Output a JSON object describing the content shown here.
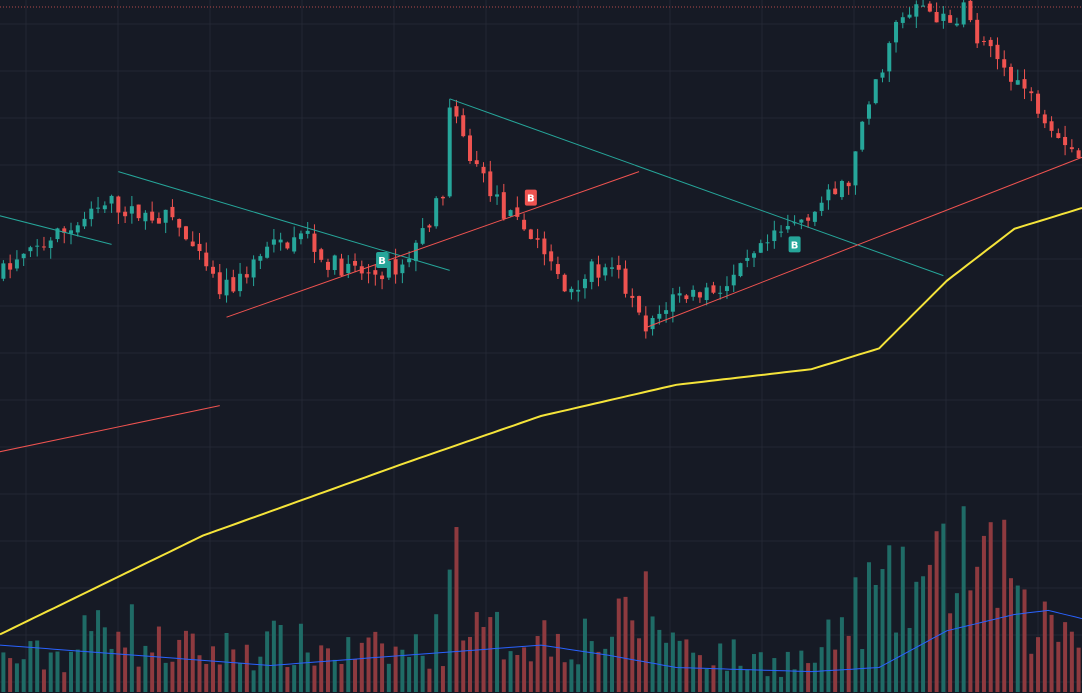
{
  "theme": {
    "background": "#161a25",
    "grid": "#232733",
    "bullish": "#26a69a",
    "bearish": "#ef5350",
    "volume_bullish": "#1f6b66",
    "volume_bearish": "#8e3a3f",
    "ma_line": "#f5e43a",
    "volume_ma": "#2962ff",
    "top_dotted": "#b04a4a"
  },
  "chart_data": {
    "type": "candlestick",
    "title": "",
    "xlabel": "",
    "ylabel": "",
    "grid": true,
    "candle_count": 160,
    "price_ylim": [
      0,
      100
    ],
    "volume_ylim": [
      0,
      100
    ],
    "price_anchor_points": [
      [
        0,
        47
      ],
      [
        8,
        54
      ],
      [
        12,
        57
      ],
      [
        17,
        61
      ],
      [
        20,
        59
      ],
      [
        26,
        58
      ],
      [
        30,
        50
      ],
      [
        33,
        44
      ],
      [
        35,
        45
      ],
      [
        40,
        52
      ],
      [
        46,
        55
      ],
      [
        48,
        50
      ],
      [
        55,
        47
      ],
      [
        60,
        49
      ],
      [
        62,
        53
      ],
      [
        66,
        63
      ],
      [
        67,
        79
      ],
      [
        70,
        70
      ],
      [
        72,
        66
      ],
      [
        75,
        59
      ],
      [
        80,
        54
      ],
      [
        84,
        44
      ],
      [
        88,
        48
      ],
      [
        92,
        47
      ],
      [
        96,
        36
      ],
      [
        100,
        43
      ],
      [
        104,
        44
      ],
      [
        108,
        45
      ],
      [
        114,
        53
      ],
      [
        120,
        59
      ],
      [
        126,
        65
      ],
      [
        129,
        80
      ],
      [
        133,
        95
      ],
      [
        137,
        99
      ],
      [
        141,
        95
      ],
      [
        143,
        99
      ],
      [
        145,
        92
      ],
      [
        150,
        86
      ],
      [
        155,
        78
      ],
      [
        160,
        70
      ]
    ],
    "volume_anchor_points": [
      [
        0,
        20
      ],
      [
        10,
        25
      ],
      [
        17,
        55
      ],
      [
        20,
        30
      ],
      [
        30,
        25
      ],
      [
        40,
        30
      ],
      [
        50,
        25
      ],
      [
        60,
        25
      ],
      [
        65,
        35
      ],
      [
        66,
        95
      ],
      [
        67,
        80
      ],
      [
        70,
        35
      ],
      [
        80,
        35
      ],
      [
        90,
        35
      ],
      [
        95,
        55
      ],
      [
        100,
        30
      ],
      [
        110,
        20
      ],
      [
        120,
        20
      ],
      [
        128,
        60
      ],
      [
        133,
        60
      ],
      [
        136,
        70
      ],
      [
        138,
        70
      ],
      [
        140,
        85
      ],
      [
        142,
        95
      ],
      [
        145,
        65
      ],
      [
        148,
        90
      ],
      [
        150,
        45
      ],
      [
        160,
        40
      ]
    ],
    "moving_average": {
      "anchor_points": [
        [
          0,
          -22
        ],
        [
          30,
          -3
        ],
        [
          60,
          11
        ],
        [
          80,
          20
        ],
        [
          100,
          26
        ],
        [
          120,
          29
        ],
        [
          130,
          33
        ],
        [
          140,
          46
        ],
        [
          150,
          56
        ],
        [
          160,
          60
        ]
      ]
    },
    "volume_moving_average": {
      "anchor_points": [
        [
          0,
          23
        ],
        [
          20,
          18
        ],
        [
          40,
          13
        ],
        [
          60,
          18
        ],
        [
          80,
          23
        ],
        [
          90,
          18
        ],
        [
          100,
          12
        ],
        [
          120,
          10
        ],
        [
          130,
          12
        ],
        [
          140,
          30
        ],
        [
          150,
          38
        ],
        [
          155,
          40
        ],
        [
          160,
          36
        ]
      ]
    },
    "trendlines": [
      {
        "color": "#26a69a",
        "from": [
          -2,
          59
        ],
        "to": [
          16,
          53
        ]
      },
      {
        "color": "#26a69a",
        "from": [
          17,
          67
        ],
        "to": [
          66,
          48
        ]
      },
      {
        "color": "#26a69a",
        "from": [
          66,
          81
        ],
        "to": [
          139,
          47
        ]
      },
      {
        "color": "#ef5350",
        "from": [
          33,
          39
        ],
        "to": [
          94,
          67
        ]
      },
      {
        "color": "#ef5350",
        "from": [
          95,
          37
        ],
        "to": [
          160,
          70
        ]
      },
      {
        "color": "#ef5350",
        "from": [
          -1,
          13
        ],
        "to": [
          32,
          22
        ]
      }
    ],
    "signals": [
      {
        "label": "B",
        "side": "buy",
        "bar": 56,
        "price": 50
      },
      {
        "label": "B",
        "side": "sell",
        "bar": 78,
        "price": 62
      },
      {
        "label": "B",
        "side": "buy",
        "bar": 117,
        "price": 53
      }
    ]
  }
}
